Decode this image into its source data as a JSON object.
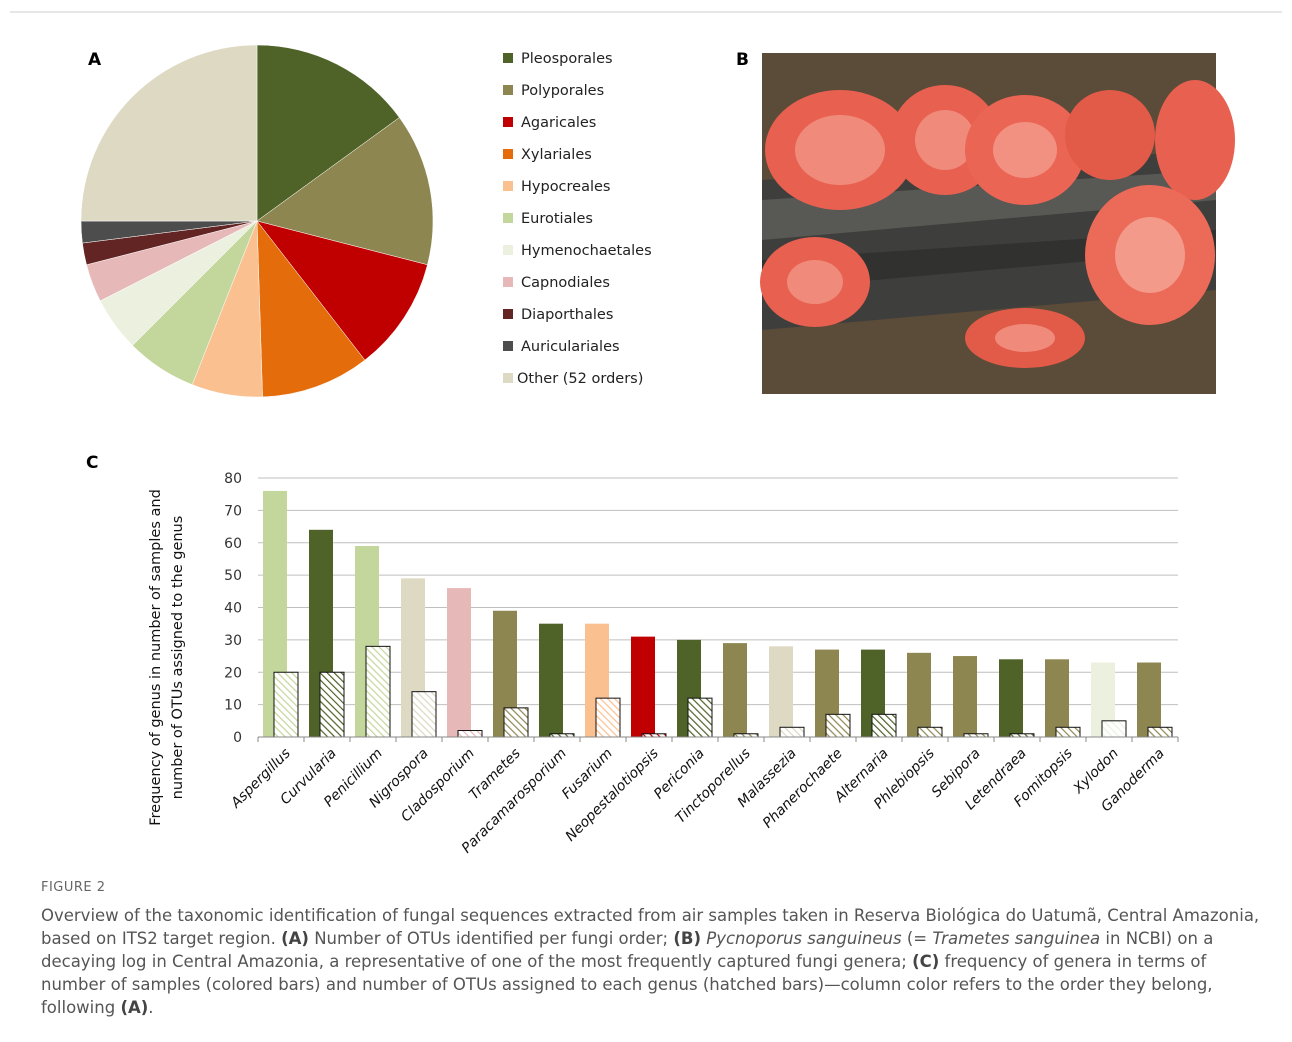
{
  "chart_data": [
    {
      "type": "pie",
      "panel_label": "A",
      "categories": [
        "Pleosporales",
        "Polyporales",
        "Agaricales",
        "Xylariales",
        "Hypocreales",
        "Eurotiales",
        "Hymenochaetales",
        "Capnodiales",
        "Diaporthales",
        "Auriculariales",
        "Other (52 orders)"
      ],
      "values": [
        15,
        14,
        10.5,
        10,
        6.5,
        6.5,
        5,
        3.5,
        2,
        2,
        25
      ],
      "colors": [
        "#4f6228",
        "#8e8650",
        "#c00000",
        "#e46c0a",
        "#fac090",
        "#c3d69b",
        "#ebf1de",
        "#e6b9b8",
        "#632523",
        "#4d4d4d",
        "#ddd9c3"
      ],
      "legend": "right"
    },
    {
      "type": "bar",
      "panel_label": "C",
      "ylabel": [
        "Frequency of genus in number of samples and",
        "number of OTUs assigned to the genus"
      ],
      "categories": [
        "Aspergillus",
        "Curvularia",
        "Penicillium",
        "Nigrospora",
        "Cladosporium",
        "Trametes",
        "Paracamarosporium",
        "Fusarium",
        "Neopestalotiopsis",
        "Periconia",
        "Tinctoporellus",
        "Malassezia",
        "Phanerochaete",
        "Alternaria",
        "Phlebiopsis",
        "Sebipora",
        "Letendraea",
        "Fomitopsis",
        "Xylodon",
        "Ganoderma"
      ],
      "colors": [
        "#c3d69b",
        "#4f6228",
        "#c3d69b",
        "#ddd9c3",
        "#e6b9b8",
        "#8e8650",
        "#4f6228",
        "#fac090",
        "#c00000",
        "#4f6228",
        "#8e8650",
        "#ddd9c3",
        "#8e8650",
        "#4f6228",
        "#8e8650",
        "#8e8650",
        "#4f6228",
        "#8e8650",
        "#ebf1de",
        "#8e8650"
      ],
      "series": [
        {
          "values": [
            76,
            64,
            59,
            49,
            46,
            39,
            35,
            35,
            31,
            30,
            29,
            28,
            27,
            27,
            26,
            25,
            24,
            24,
            23,
            23
          ]
        },
        {
          "values": [
            20,
            20,
            28,
            14,
            2,
            9,
            1,
            12,
            1,
            12,
            1,
            3,
            7,
            7,
            3,
            1,
            1,
            3,
            5,
            3
          ],
          "hatched": true
        }
      ],
      "ylim": [
        0,
        80
      ],
      "yticks": [
        0,
        10,
        20,
        30,
        40,
        50,
        60,
        70,
        80
      ],
      "grid": true
    }
  ],
  "photo": {
    "panel_label": "B"
  },
  "figure": {
    "label": "FIGURE 2",
    "caption_parts": [
      "Overview of the taxonomic identification of fungal sequences extracted from air samples taken in Reserva Biológica do Uatumã, Central Amazonia, based on ITS2 target region. ",
      "(A)",
      " Number of OTUs identified per fungi order; ",
      "(B)",
      " ",
      "Pycnoporus sanguineus",
      " (= ",
      "Trametes sanguinea",
      " in NCBI) on a decaying log in Central Amazonia, a representative of one of the most frequently captured fungi genera; ",
      "(C)",
      " frequency of genera in terms of number of samples (colored bars) and number of OTUs assigned to each genus (hatched bars)—column color refers to the order they belong, following ",
      "(A)",
      "."
    ]
  }
}
